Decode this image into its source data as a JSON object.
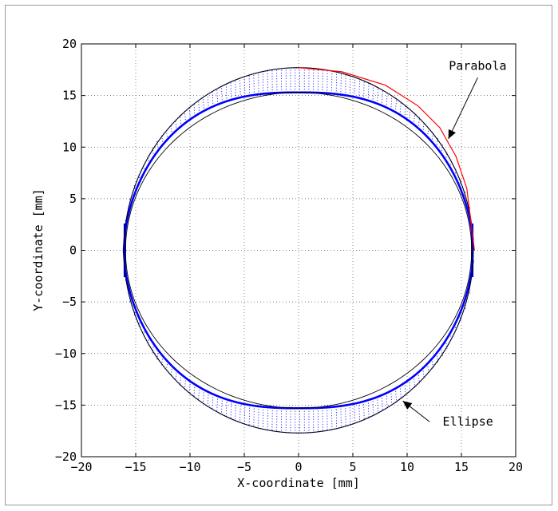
{
  "chart_data": {
    "type": "scatter",
    "title": "",
    "xlabel": "X-coordinate [mm]",
    "ylabel": "Y-coordinate [mm]",
    "xlim": [
      -20,
      20
    ],
    "ylim": [
      -20,
      20
    ],
    "xticks": [
      -20,
      -15,
      -10,
      -5,
      0,
      5,
      10,
      15,
      20
    ],
    "yticks": [
      -20,
      -15,
      -10,
      -5,
      0,
      5,
      10,
      15,
      20
    ],
    "grid": true,
    "grid_style": "dotted",
    "annotations": [
      {
        "text": "Parabola",
        "point": [
          13.8,
          10.8
        ],
        "text_at": [
          16.5,
          17.5
        ]
      },
      {
        "text": "Ellipse",
        "point": [
          9.6,
          -14.6
        ],
        "text_at": [
          15.6,
          -17.0
        ]
      }
    ],
    "series": [
      {
        "color": "#0000ff",
        "style": "dotted points",
        "description_values": {
          "outer_top_y_at_x0": 17.7,
          "inner_top_y_at_x0": 15.3,
          "outer_bottom_y_at_x0": -17.7,
          "inner_bottom_y_at_x0": -15.3,
          "left_x_at_y0": -16.1,
          "right_x_at_y0": 16.1
        }
      },
      {
        "color": "#000000",
        "style": "line",
        "x": [
          0,
          4,
          8,
          12,
          14,
          15.5,
          16.1
        ],
        "y": [
          17.7,
          17.1,
          15.2,
          11.6,
          8.5,
          4.5,
          0
        ]
      },
      {
        "color": "#ff0000",
        "style": "line",
        "x": [
          0,
          4,
          8,
          11,
          13,
          14.5,
          15.5,
          16.2
        ],
        "y": [
          17.7,
          17.3,
          16.0,
          14.0,
          11.9,
          9.1,
          6.0,
          0
        ]
      }
    ]
  }
}
